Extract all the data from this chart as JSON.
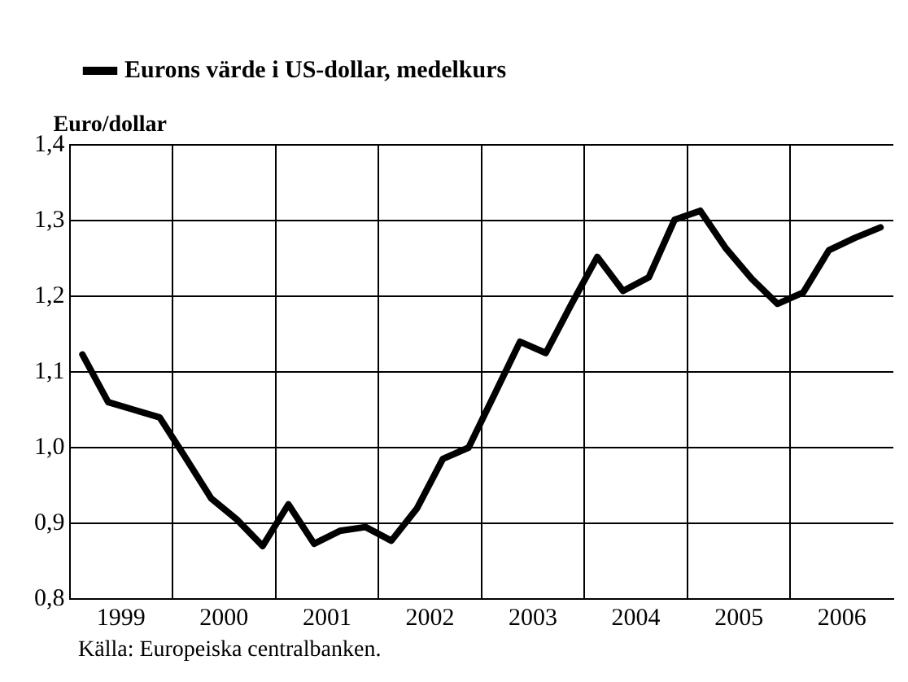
{
  "chart_data": {
    "type": "line",
    "ylabel": "Euro/dollar",
    "annotations": [
      "Källa: Europeiska centralbanken."
    ],
    "x": [
      1999.125,
      1999.375,
      1999.625,
      1999.875,
      2000.125,
      2000.375,
      2000.625,
      2000.875,
      2001.125,
      2001.375,
      2001.625,
      2001.875,
      2002.125,
      2002.375,
      2002.625,
      2002.875,
      2003.125,
      2003.375,
      2003.625,
      2003.875,
      2004.125,
      2004.375,
      2004.625,
      2004.875,
      2005.125,
      2005.375,
      2005.625,
      2005.875,
      2006.125,
      2006.375,
      2006.625,
      2006.875
    ],
    "series": [
      {
        "name": "Eurons värde i US-dollar, medelkurs",
        "color": "#000000",
        "values": [
          1.123,
          1.06,
          1.05,
          1.04,
          0.987,
          0.933,
          0.905,
          0.87,
          0.925,
          0.873,
          0.89,
          0.895,
          0.877,
          0.92,
          0.985,
          1.0,
          1.07,
          1.14,
          1.125,
          1.19,
          1.252,
          1.207,
          1.225,
          1.301,
          1.313,
          1.263,
          1.223,
          1.19,
          1.205,
          1.261,
          1.277,
          1.291
        ]
      }
    ],
    "xlim": [
      1999,
      2007
    ],
    "xticks": [
      {
        "value": 1999.5,
        "label": "1999"
      },
      {
        "value": 2000,
        "label": null
      },
      {
        "value": 2000.5,
        "label": "2000"
      },
      {
        "value": 2001,
        "label": null
      },
      {
        "value": 2001.5,
        "label": "2001"
      },
      {
        "value": 2002,
        "label": null
      },
      {
        "value": 2002.5,
        "label": "2002"
      },
      {
        "value": 2003,
        "label": null
      },
      {
        "value": 2003.5,
        "label": "2003"
      },
      {
        "value": 2004,
        "label": null
      },
      {
        "value": 2004.5,
        "label": "2004"
      },
      {
        "value": 2005,
        "label": null
      },
      {
        "value": 2005.5,
        "label": "2005"
      },
      {
        "value": 2006,
        "label": null
      },
      {
        "value": 2006.5,
        "label": "2006"
      }
    ],
    "ylim": [
      0.8,
      1.4
    ],
    "yticks": [
      {
        "value": 0.8,
        "label": "0,8"
      },
      {
        "value": 0.9,
        "label": "0,9"
      },
      {
        "value": 1.0,
        "label": "1,0"
      },
      {
        "value": 1.1,
        "label": "1,1"
      },
      {
        "value": 1.2,
        "label": "1,2"
      },
      {
        "value": 1.3,
        "label": "1,3"
      },
      {
        "value": 1.4,
        "label": "1,4"
      }
    ],
    "grid": true,
    "legend": "top left",
    "marker": "none",
    "line_style": "solid"
  }
}
